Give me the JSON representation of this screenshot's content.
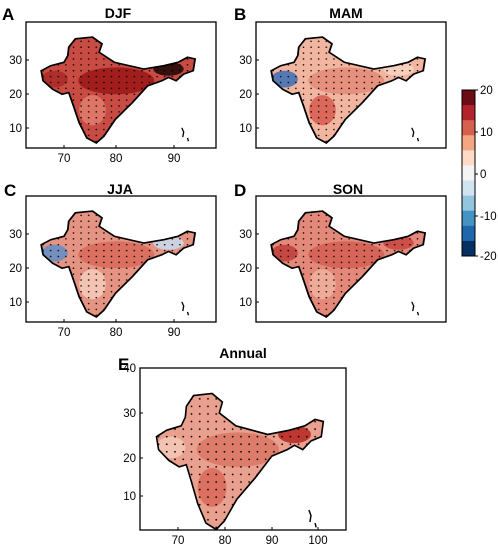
{
  "panels": [
    {
      "letter": "A",
      "title": "DJF",
      "xticks": [
        "70",
        "80",
        "90"
      ],
      "yticks": [
        "30",
        "20",
        "10"
      ],
      "fill": "#c84c43",
      "patches": [
        {
          "c": "#9a1616"
        },
        {
          "c": "#a92a25"
        },
        {
          "c": "#e07c6e"
        },
        {
          "c": "#1a0606"
        }
      ]
    },
    {
      "letter": "B",
      "title": "MAM",
      "xticks": [
        "70",
        "80",
        "90"
      ],
      "yticks": [
        "30",
        "20",
        "10"
      ],
      "fill": "#f2b6a0",
      "patches": [
        {
          "c": "#e48a78"
        },
        {
          "c": "#3b6fb6"
        },
        {
          "c": "#d85b50"
        },
        {
          "c": "#f7d3c4"
        }
      ]
    },
    {
      "letter": "C",
      "title": "JJA",
      "xticks": [
        "70",
        "80",
        "90"
      ],
      "yticks": [
        "30",
        "20",
        "10"
      ],
      "fill": "#e59483",
      "patches": [
        {
          "c": "#d9685b"
        },
        {
          "c": "#5f8ec9"
        },
        {
          "c": "#f6cdbd"
        },
        {
          "c": "#c7dcef"
        }
      ]
    },
    {
      "letter": "D",
      "title": "SON",
      "xticks": [
        "70",
        "80",
        "90"
      ],
      "yticks": [
        "30",
        "20",
        "10"
      ],
      "fill": "#e4887a",
      "patches": [
        {
          "c": "#d45e52"
        },
        {
          "c": "#c13d38"
        },
        {
          "c": "#f0b19d"
        },
        {
          "c": "#c8453f"
        }
      ]
    },
    {
      "letter": "E",
      "title": "Annual",
      "xticks": [
        "70",
        "80",
        "90",
        "100"
      ],
      "yticks": [
        "40",
        "30",
        "20",
        "10"
      ],
      "fill": "#e9a08e",
      "patches": [
        {
          "c": "#db7565"
        },
        {
          "c": "#f5c9b8"
        },
        {
          "c": "#d9695b"
        },
        {
          "c": "#b52620"
        }
      ]
    }
  ],
  "colorbar": {
    "ticks": [
      "20",
      "10",
      "0",
      "-10",
      "-20"
    ],
    "colors": [
      "#6b0d17",
      "#b2232b",
      "#d6604d",
      "#f4a582",
      "#fddbc7",
      "#f4f4f4",
      "#d1e5f0",
      "#92c5de",
      "#4393c3",
      "#2166ac",
      "#053061"
    ]
  },
  "colors": {
    "land_outline": "#000000",
    "stipple": "#000000",
    "no_data": "#ffffff"
  }
}
